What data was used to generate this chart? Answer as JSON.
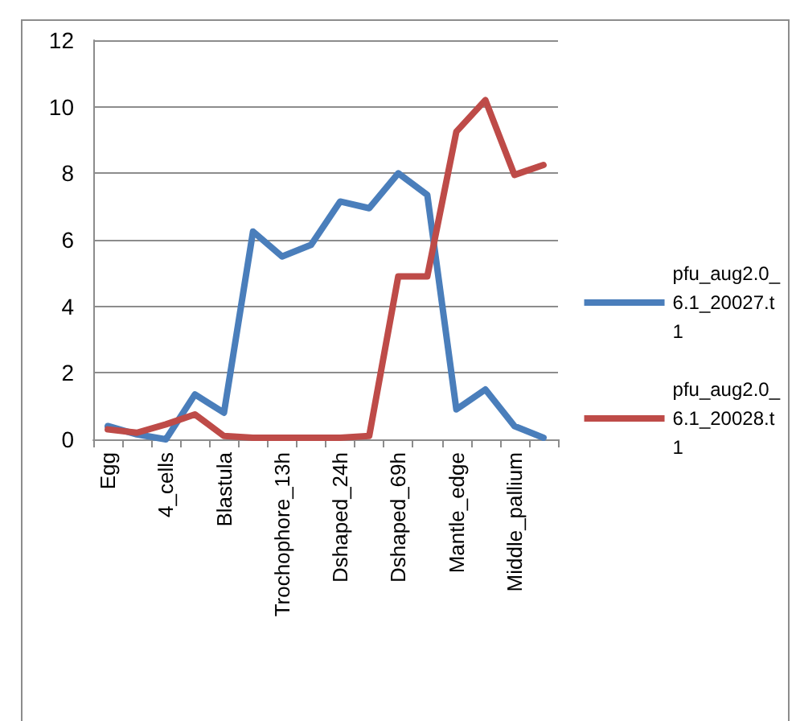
{
  "chart_data": {
    "type": "line",
    "categories": [
      "Egg",
      null,
      "4_cells",
      null,
      "Blastula",
      null,
      "Trochophore_13h",
      null,
      "Dshaped_24h",
      null,
      "Dshaped_69h",
      null,
      "Mantle_edge",
      null,
      "Middle_pallium",
      null
    ],
    "series": [
      {
        "name": "pfu_aug2.0_6.1_20027.t1",
        "color": "#4a7ebb",
        "values": [
          0.4,
          0.15,
          0.0,
          1.35,
          0.8,
          6.25,
          5.5,
          5.85,
          7.15,
          6.95,
          8.0,
          7.35,
          0.9,
          1.5,
          0.4,
          0.05
        ]
      },
      {
        "name": "pfu_aug2.0_6.1_20028.t1",
        "color": "#be4b48",
        "values": [
          0.3,
          0.2,
          0.45,
          0.75,
          0.1,
          0.05,
          0.05,
          0.05,
          0.05,
          0.1,
          4.9,
          4.9,
          9.25,
          10.2,
          7.95,
          8.25
        ]
      }
    ],
    "ylim": [
      0,
      12
    ],
    "yticks": [
      0,
      2,
      4,
      6,
      8,
      10,
      12
    ],
    "grid": "y",
    "legend": "right",
    "marker": "none",
    "line_style": "solid"
  }
}
